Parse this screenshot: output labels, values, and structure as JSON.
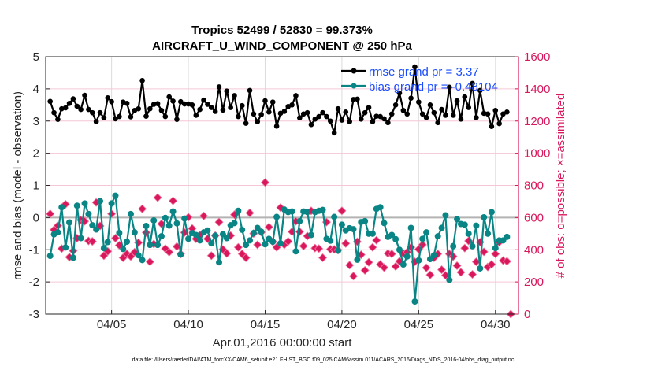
{
  "chart_data": {
    "type": "line",
    "title": "Tropics 52499 / 52830 = 99.373%",
    "subtitle": "AIRCRAFT_U_WIND_COMPONENT @ 250 hPa",
    "xlabel": "Apr.01,2016 00:00:00 start",
    "ylabel": "rmse and bias (model - observation)",
    "ylabel_right": "# of obs: o=possible; ×=assimilated",
    "footer": "data file: /Users/raeder/DAI/ATM_forcXX/CAM6_setup/f.e21.FHIST_BGC.f09_025.CAM6assim.011/ACARS_2016/Diags_NTrS_2016-04/obs_diag_output.nc",
    "xlim": [
      "2016-03-31T17:00",
      "2016-05-01T12:00"
    ],
    "ylim": [
      -3,
      5
    ],
    "ylim_right": [
      0,
      1600
    ],
    "grid": true,
    "legend_placement": "top-right",
    "x_ticks": [
      {
        "date": "2016-04-05T00:00",
        "label": "04/05"
      },
      {
        "date": "2016-04-10T00:00",
        "label": "04/10"
      },
      {
        "date": "2016-04-15T00:00",
        "label": "04/15"
      },
      {
        "date": "2016-04-20T00:00",
        "label": "04/20"
      },
      {
        "date": "2016-04-25T00:00",
        "label": "04/25"
      },
      {
        "date": "2016-04-30T00:00",
        "label": "04/30"
      }
    ],
    "y_ticks": [
      "-3",
      "-2",
      "-1",
      "0",
      "1",
      "2",
      "3",
      "4",
      "5"
    ],
    "y_ticks_right": [
      "0",
      "200",
      "400",
      "600",
      "800",
      "1000",
      "1200",
      "1400",
      "1600"
    ],
    "colors": {
      "rmse": "#000000",
      "bias": "#0a8585",
      "obs": "#d8175c",
      "legend_text": "#1a4cff",
      "zero_line": "#b3b3b3"
    },
    "x": [
      "2016-04-01T00:00",
      "2016-04-01T06:00",
      "2016-04-01T12:00",
      "2016-04-01T18:00",
      "2016-04-02T00:00",
      "2016-04-02T06:00",
      "2016-04-02T12:00",
      "2016-04-02T18:00",
      "2016-04-03T00:00",
      "2016-04-03T06:00",
      "2016-04-03T12:00",
      "2016-04-03T18:00",
      "2016-04-04T00:00",
      "2016-04-04T06:00",
      "2016-04-04T12:00",
      "2016-04-04T18:00",
      "2016-04-05T00:00",
      "2016-04-05T06:00",
      "2016-04-05T12:00",
      "2016-04-05T18:00",
      "2016-04-06T00:00",
      "2016-04-06T06:00",
      "2016-04-06T12:00",
      "2016-04-06T18:00",
      "2016-04-07T00:00",
      "2016-04-07T06:00",
      "2016-04-07T12:00",
      "2016-04-07T18:00",
      "2016-04-08T00:00",
      "2016-04-08T06:00",
      "2016-04-08T12:00",
      "2016-04-08T18:00",
      "2016-04-09T00:00",
      "2016-04-09T06:00",
      "2016-04-09T12:00",
      "2016-04-09T18:00",
      "2016-04-10T00:00",
      "2016-04-10T06:00",
      "2016-04-10T12:00",
      "2016-04-10T18:00",
      "2016-04-11T00:00",
      "2016-04-11T06:00",
      "2016-04-11T12:00",
      "2016-04-11T18:00",
      "2016-04-12T00:00",
      "2016-04-12T06:00",
      "2016-04-12T12:00",
      "2016-04-12T18:00",
      "2016-04-13T00:00",
      "2016-04-13T06:00",
      "2016-04-13T12:00",
      "2016-04-13T18:00",
      "2016-04-14T00:00",
      "2016-04-14T06:00",
      "2016-04-14T12:00",
      "2016-04-14T18:00",
      "2016-04-15T00:00",
      "2016-04-15T06:00",
      "2016-04-15T12:00",
      "2016-04-15T18:00",
      "2016-04-16T00:00",
      "2016-04-16T06:00",
      "2016-04-16T12:00",
      "2016-04-16T18:00",
      "2016-04-17T00:00",
      "2016-04-17T06:00",
      "2016-04-17T12:00",
      "2016-04-17T18:00",
      "2016-04-18T00:00",
      "2016-04-18T06:00",
      "2016-04-18T12:00",
      "2016-04-18T18:00",
      "2016-04-19T00:00",
      "2016-04-19T06:00",
      "2016-04-19T12:00",
      "2016-04-19T18:00",
      "2016-04-20T00:00",
      "2016-04-20T06:00",
      "2016-04-20T12:00",
      "2016-04-20T18:00",
      "2016-04-21T00:00",
      "2016-04-21T06:00",
      "2016-04-21T12:00",
      "2016-04-21T18:00",
      "2016-04-22T00:00",
      "2016-04-22T06:00",
      "2016-04-22T12:00",
      "2016-04-22T18:00",
      "2016-04-23T00:00",
      "2016-04-23T06:00",
      "2016-04-23T12:00",
      "2016-04-23T18:00",
      "2016-04-24T00:00",
      "2016-04-24T06:00",
      "2016-04-24T12:00",
      "2016-04-24T18:00",
      "2016-04-25T00:00",
      "2016-04-25T06:00",
      "2016-04-25T12:00",
      "2016-04-25T18:00",
      "2016-04-26T00:00",
      "2016-04-26T06:00",
      "2016-04-26T12:00",
      "2016-04-26T18:00",
      "2016-04-27T00:00",
      "2016-04-27T06:00",
      "2016-04-27T12:00",
      "2016-04-27T18:00",
      "2016-04-28T00:00",
      "2016-04-28T06:00",
      "2016-04-28T12:00",
      "2016-04-28T18:00",
      "2016-04-29T00:00",
      "2016-04-29T06:00",
      "2016-04-29T12:00",
      "2016-04-29T18:00",
      "2016-04-30T00:00",
      "2016-04-30T06:00",
      "2016-04-30T12:00",
      "2016-04-30T18:00",
      "2016-05-01T00:00"
    ],
    "series": [
      {
        "name": "rmse grand pr = 3.37",
        "axis": "left",
        "values": [
          3.61,
          3.26,
          3.05,
          3.38,
          3.41,
          3.55,
          3.69,
          3.46,
          3.36,
          3.8,
          3.36,
          3.26,
          2.98,
          3.26,
          3.1,
          3.72,
          3.6,
          3.07,
          3.14,
          3.59,
          3.55,
          3.13,
          3.33,
          3.38,
          4.26,
          3.15,
          3.38,
          3.52,
          3.54,
          3.33,
          3.14,
          3.75,
          3.62,
          3.05,
          3.6,
          3.53,
          3.53,
          3.5,
          3.18,
          3.36,
          3.65,
          3.52,
          3.42,
          3.3,
          4.06,
          3.34,
          3.93,
          3.42,
          3.79,
          3.14,
          3.48,
          2.93,
          3.95,
          3.22,
          2.98,
          3.2,
          3.63,
          3.28,
          3.59,
          2.84,
          3.24,
          3.3,
          3.45,
          3.5,
          3.79,
          3.1,
          3.22,
          3.26,
          2.89,
          3.06,
          3.14,
          3.26,
          3.14,
          3.0,
          2.63,
          3.38,
          3.03,
          3.28,
          2.98,
          3.67,
          3.68,
          3.06,
          3.26,
          3.42,
          2.98,
          3.15,
          3.14,
          3.07,
          2.95,
          3.22,
          3.5,
          3.87,
          3.33,
          3.22,
          3.71,
          4.68,
          3.59,
          3.22,
          3.11,
          3.5,
          3.26,
          2.95,
          3.36,
          3.18,
          4.05,
          3.18,
          3.63,
          3.06,
          3.75,
          3.42,
          4.17,
          3.11,
          3.95,
          3.24,
          3.22,
          2.83,
          3.33,
          2.92,
          3.22,
          3.28,
          null
        ]
      },
      {
        "name": "bias grand pr = -0.48104",
        "axis": "left",
        "values": [
          -1.19,
          -0.52,
          -0.46,
          0.32,
          -0.93,
          -0.15,
          -1.25,
          0.37,
          -0.64,
          0.44,
          0.11,
          -0.24,
          -0.37,
          0.51,
          -0.95,
          -0.76,
          0.44,
          0.68,
          -0.48,
          -0.98,
          -0.75,
          0.11,
          -0.46,
          -1.17,
          -1.32,
          -0.26,
          -0.85,
          -0.09,
          -0.85,
          -0.58,
          -0.01,
          -0.25,
          0.19,
          -0.18,
          -1.15,
          -0.03,
          -0.66,
          -0.48,
          -0.54,
          -0.71,
          -0.46,
          -0.4,
          -0.8,
          -0.56,
          -1.39,
          -0.52,
          -0.64,
          -0.24,
          -0.17,
          0.21,
          -0.38,
          -0.85,
          -0.71,
          -0.48,
          -0.32,
          -0.44,
          -0.83,
          -0.66,
          -0.75,
          0.02,
          -0.8,
          0.25,
          0.17,
          0.19,
          -1.05,
          -0.11,
          0.19,
          0.17,
          -0.54,
          0.17,
          0.21,
          0.24,
          -0.66,
          -0.72,
          0.02,
          -1.03,
          -0.22,
          -0.4,
          -0.33,
          -0.36,
          -1.31,
          -0.14,
          -0.11,
          -0.5,
          -0.5,
          0.27,
          0.32,
          -0.17,
          -0.6,
          -0.54,
          -0.67,
          -1.0,
          -1.46,
          -1.21,
          -0.32,
          -2.61,
          -1.33,
          -0.66,
          -0.46,
          -1.29,
          -1.17,
          -0.58,
          -0.32,
          0.07,
          -1.94,
          -0.89,
          -0.05,
          -0.2,
          -0.22,
          -0.5,
          -0.89,
          -0.25,
          -1.58,
          0.01,
          -0.5,
          0.17,
          -0.95,
          -0.71,
          -0.71,
          -0.6,
          null
        ]
      },
      {
        "axis": "right",
        "values": [
          623,
          524,
          550,
          407,
          683,
          354,
          393,
          472,
          585,
          577,
          455,
          452,
          694,
          548,
          363,
          390,
          623,
          472,
          428,
          350,
          374,
          358,
          385,
          444,
          654,
          507,
          325,
          436,
          724,
          561,
          407,
          385,
          704,
          420,
          374,
          507,
          602,
          532,
          468,
          491,
          610,
          468,
          363,
          488,
          572,
          402,
          377,
          488,
          618,
          415,
          374,
          350,
          629,
          501,
          431,
          509,
          818,
          541,
          450,
          415,
          662,
          431,
          452,
          512,
          577,
          512,
          423,
          485,
          642,
          410,
          407,
          350,
          572,
          403,
          402,
          398,
          642,
          439,
          304,
          236,
          450,
          369,
          272,
          322,
          415,
          459,
          309,
          289,
          377,
          374,
          296,
          328,
          377,
          385,
          415,
          325,
          403,
          431,
          288,
          244,
          350,
          374,
          276,
          241,
          374,
          358,
          301,
          260,
          410,
          455,
          247,
          325,
          447,
          387,
          293,
          309,
          374,
          447,
          333,
          328,
          0
        ]
      }
    ]
  }
}
